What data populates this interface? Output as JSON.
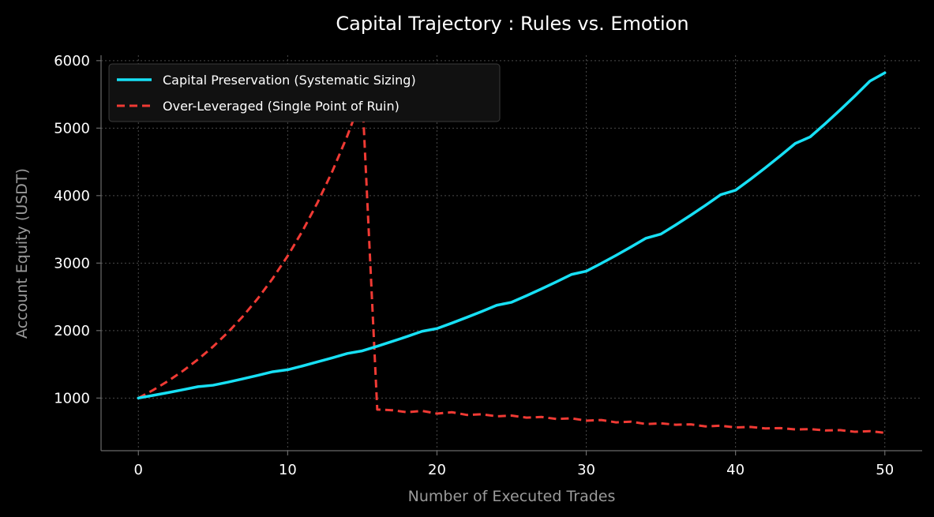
{
  "chart_data": {
    "type": "line",
    "title": "Capital Trajectory :  Rules vs.  Emotion",
    "xlabel": "Number of Executed Trades",
    "ylabel": "Account Equity (USDT)",
    "xlim": [
      -2.5,
      52.5
    ],
    "ylim": [
      220,
      6080
    ],
    "xticks": [
      0,
      10,
      20,
      30,
      40,
      50
    ],
    "yticks": [
      1000,
      2000,
      3000,
      4000,
      5000,
      6000
    ],
    "grid": true,
    "legend_position": "top-left",
    "x": [
      0,
      1,
      2,
      3,
      4,
      5,
      6,
      7,
      8,
      9,
      10,
      11,
      12,
      13,
      14,
      15,
      16,
      17,
      18,
      19,
      20,
      21,
      22,
      23,
      24,
      25,
      26,
      27,
      28,
      29,
      30,
      31,
      32,
      33,
      34,
      35,
      36,
      37,
      38,
      39,
      40,
      41,
      42,
      43,
      44,
      45,
      46,
      47,
      48,
      49,
      50
    ],
    "series": [
      {
        "name": "Capital Preservation (Systematic Sizing)",
        "color": "#17e0f5",
        "style": "solid",
        "values": [
          1000,
          1040,
          1081,
          1124,
          1169,
          1190,
          1235,
          1285,
          1336,
          1390,
          1420,
          1476,
          1536,
          1597,
          1661,
          1700,
          1768,
          1839,
          1912,
          1989,
          2030,
          2111,
          2196,
          2283,
          2375,
          2420,
          2517,
          2618,
          2722,
          2831,
          2880,
          2995,
          3115,
          3240,
          3369,
          3430,
          3567,
          3710,
          3858,
          4013,
          4080,
          4243,
          4413,
          4590,
          4773,
          4870,
          5065,
          5268,
          5478,
          5697,
          5820
        ]
      },
      {
        "name": "Over-Leveraged (Single Point of Ruin)",
        "color": "#f03a34",
        "style": "dashed",
        "values": [
          1000,
          1120,
          1254,
          1405,
          1574,
          1762,
          1974,
          2211,
          2476,
          2773,
          3106,
          3479,
          3896,
          4364,
          4888,
          5475,
          830,
          820,
          790,
          810,
          770,
          790,
          750,
          760,
          730,
          740,
          710,
          720,
          690,
          700,
          665,
          675,
          640,
          650,
          615,
          625,
          605,
          610,
          580,
          590,
          565,
          572,
          550,
          555,
          535,
          540,
          520,
          525,
          500,
          510,
          485
        ]
      }
    ]
  }
}
